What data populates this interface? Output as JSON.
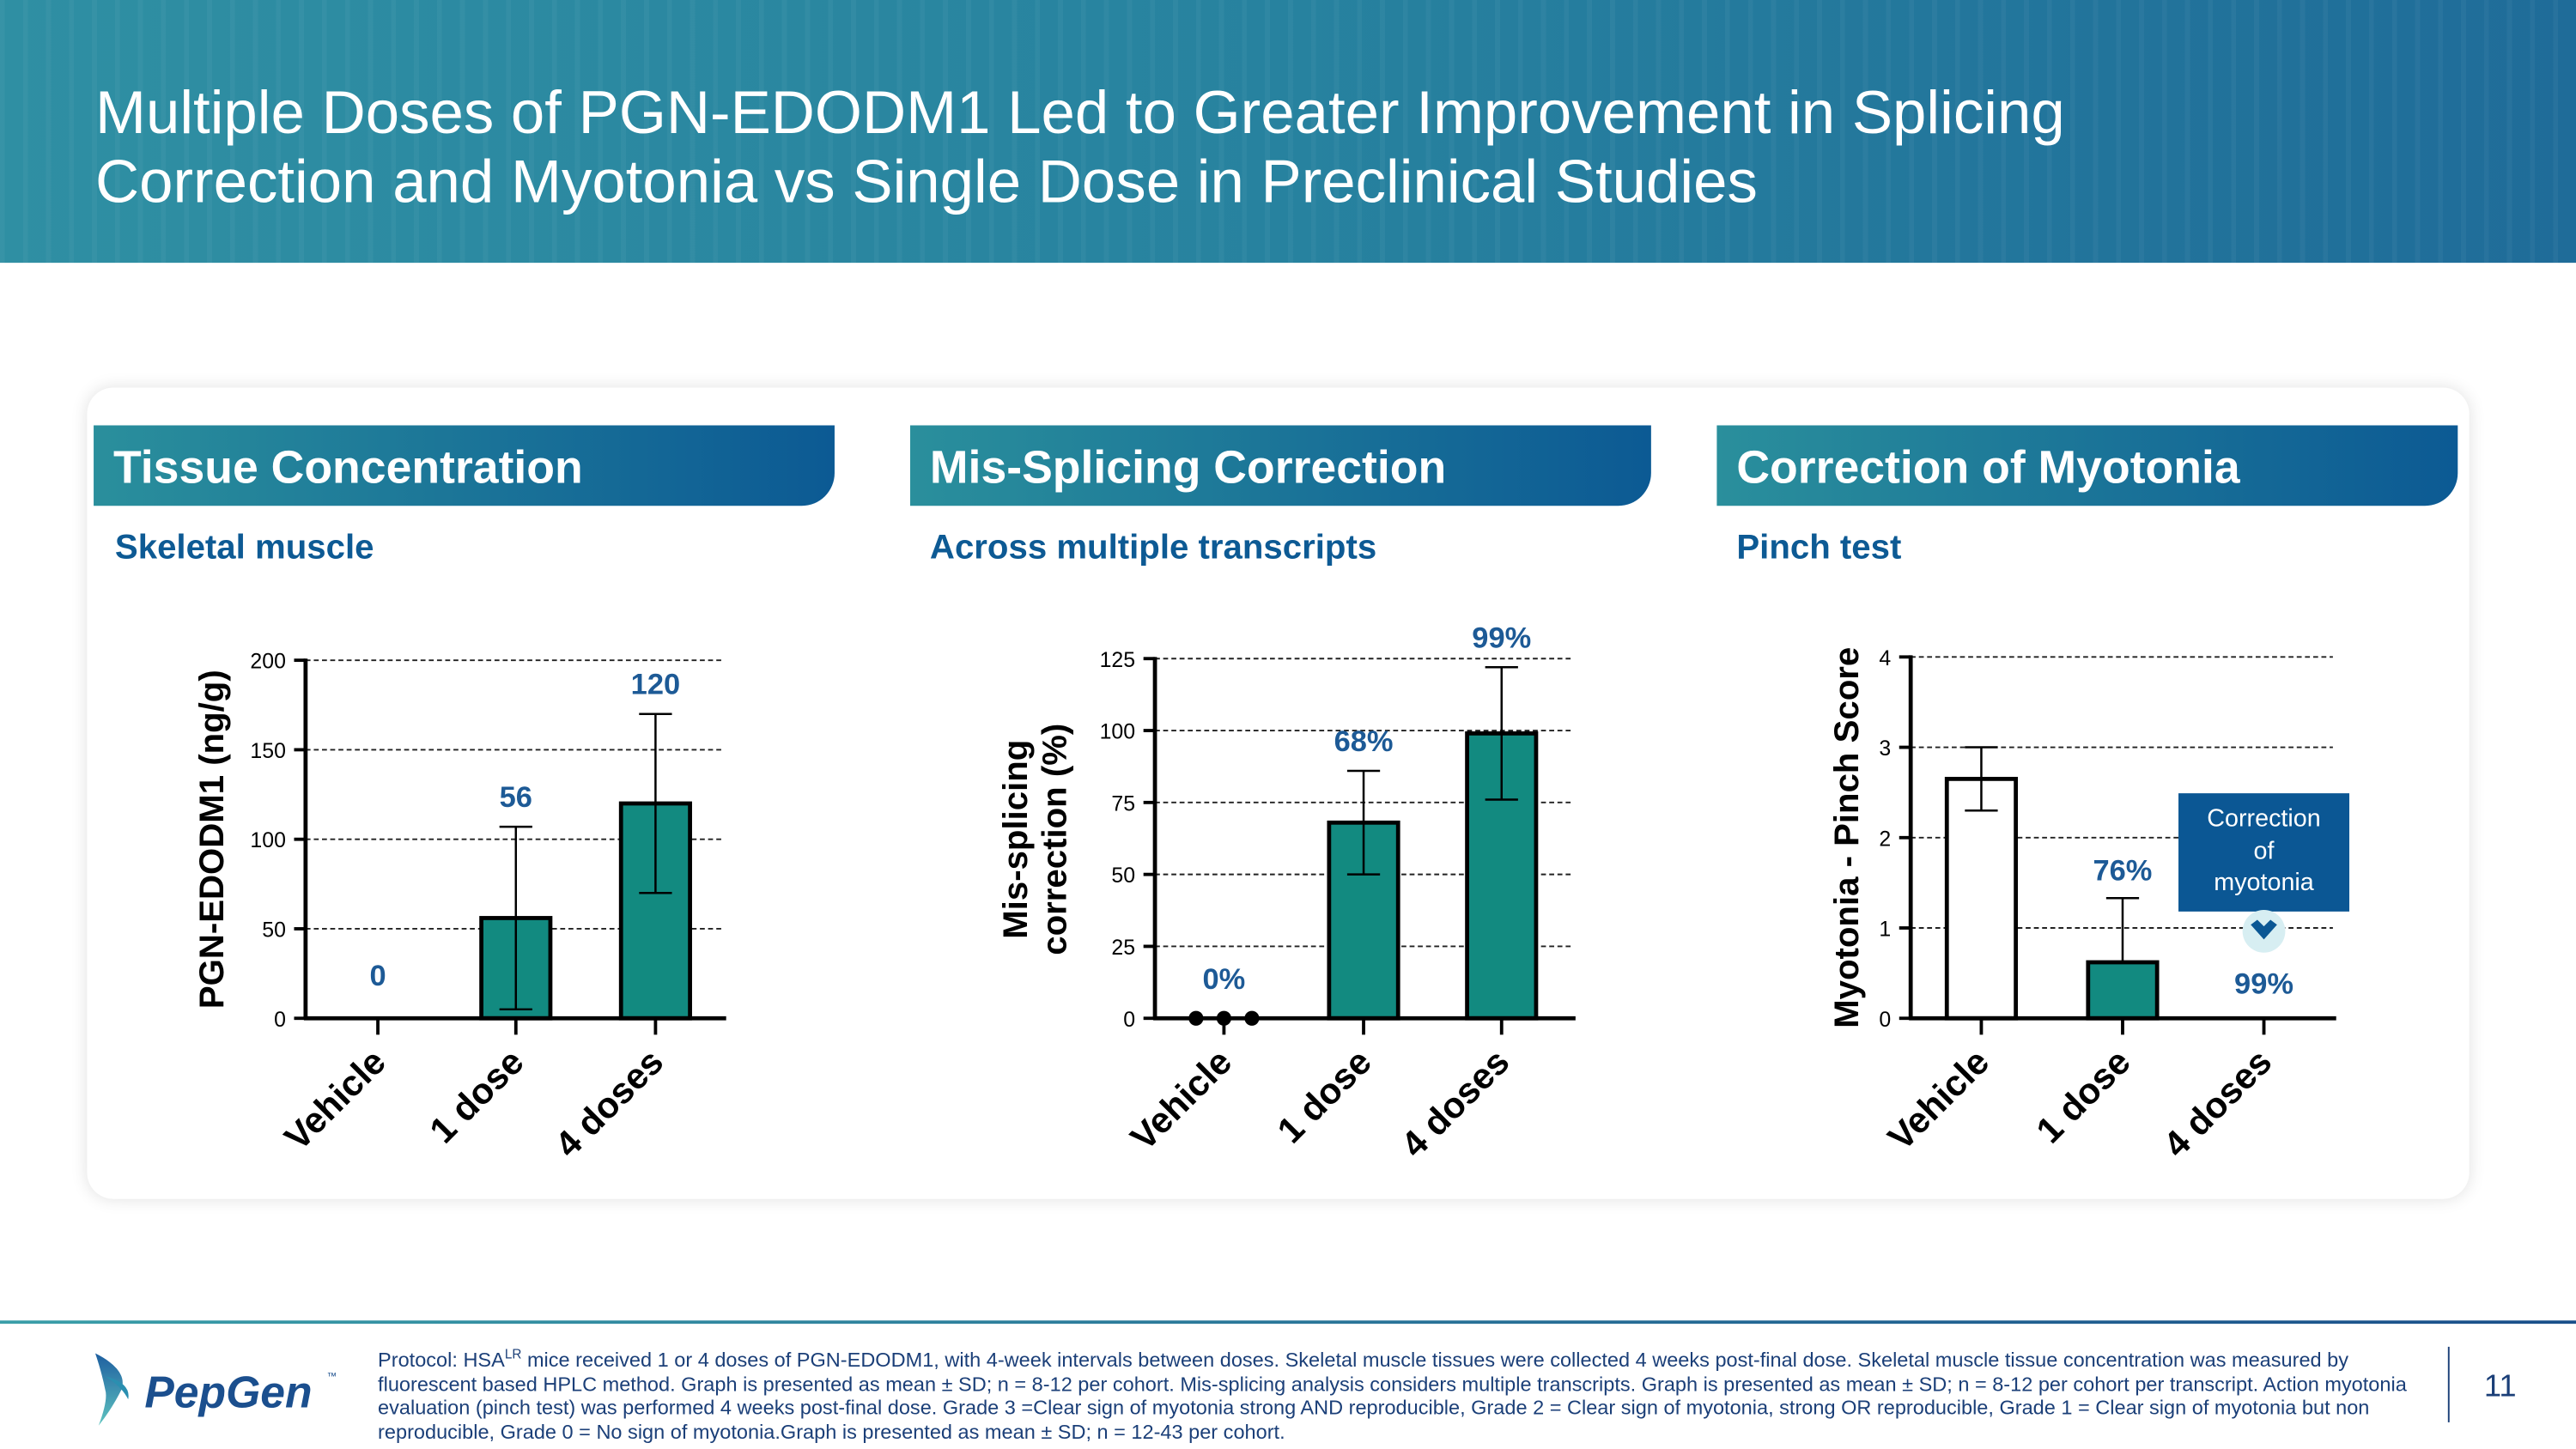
{
  "header": {
    "title_line1": "Multiple Doses of PGN-EDODM1 Led to Greater Improvement in Splicing",
    "title_line2": "Correction and Myotonia vs Single Dose in Preclinical Studies"
  },
  "panels": [
    {
      "title": "Tissue Concentration",
      "subtitle": "Skeletal muscle"
    },
    {
      "title": "Mis-Splicing Correction",
      "subtitle": "Across multiple transcripts"
    },
    {
      "title": "Correction of Myotonia",
      "subtitle": "Pinch test"
    }
  ],
  "callout": {
    "line1": "Correction",
    "line2": "of",
    "line3": "myotonia",
    "icon": "chevron-down-icon"
  },
  "colors": {
    "bar": "#128a80",
    "label": "#1d5a96",
    "accent": "#0b5794"
  },
  "chart_data": [
    {
      "type": "bar",
      "ylabel": "PGN-EDODM1 (ng/g)",
      "ylim": [
        0,
        200
      ],
      "yticks": [
        0,
        50,
        100,
        150,
        200
      ],
      "categories": [
        "Vehicle",
        "1 dose",
        "4 doses"
      ],
      "values": [
        0,
        56,
        120
      ],
      "err_low": [
        0,
        5,
        70
      ],
      "err_high": [
        0,
        107,
        170
      ],
      "data_labels": [
        "0",
        "56",
        "120"
      ],
      "grid": true
    },
    {
      "type": "bar",
      "ylabel_line1": "Mis-splicing",
      "ylabel_line2": "correction (%)",
      "ylim": [
        0,
        125
      ],
      "yticks": [
        0,
        25,
        50,
        75,
        100,
        125
      ],
      "categories": [
        "Vehicle",
        "1 dose",
        "4 doses"
      ],
      "values": [
        0,
        68,
        99
      ],
      "err_low": [
        0,
        50,
        76
      ],
      "err_high": [
        0,
        86,
        122
      ],
      "data_labels": [
        "0%",
        "68%",
        "99%"
      ],
      "grid": true
    },
    {
      "type": "bar",
      "ylabel": "Myotonia - Pinch Score",
      "ylim": [
        0,
        4
      ],
      "yticks": [
        0,
        1,
        2,
        3,
        4
      ],
      "categories": [
        "Vehicle",
        "1 dose",
        "4 doses"
      ],
      "values": [
        2.65,
        0.62,
        0
      ],
      "err_low": [
        2.3,
        0.62,
        0
      ],
      "err_high": [
        3.0,
        1.33,
        0
      ],
      "data_labels": [
        "",
        "76%",
        "99%"
      ],
      "grid": true
    }
  ],
  "footer": {
    "protocol": "Protocol: HSA",
    "superscript": "LR",
    "text": " mice received 1 or 4 doses of PGN-EDODM1, with 4-week intervals between doses. Skeletal muscle tissues were collected 4 weeks post-final dose. Skeletal muscle tissue concentration was measured by fluorescent based HPLC method. Graph is presented as mean ± SD; n = 8-12 per cohort. Mis-splicing analysis considers multiple transcripts. Graph is presented as mean ± SD; n = 8-12 per cohort per transcript. Action myotonia evaluation (pinch test) was performed 4 weeks post-final dose. Grade 3 =Clear sign of myotonia strong AND reproducible, Grade 2 = Clear sign of myotonia, strong OR reproducible, Grade 1 = Clear sign of myotonia but non reproducible, Grade 0 = No sign of myotonia.Graph is presented as mean ± SD; n = 12-43 per cohort.",
    "page": "11",
    "logo": "PepGen"
  }
}
